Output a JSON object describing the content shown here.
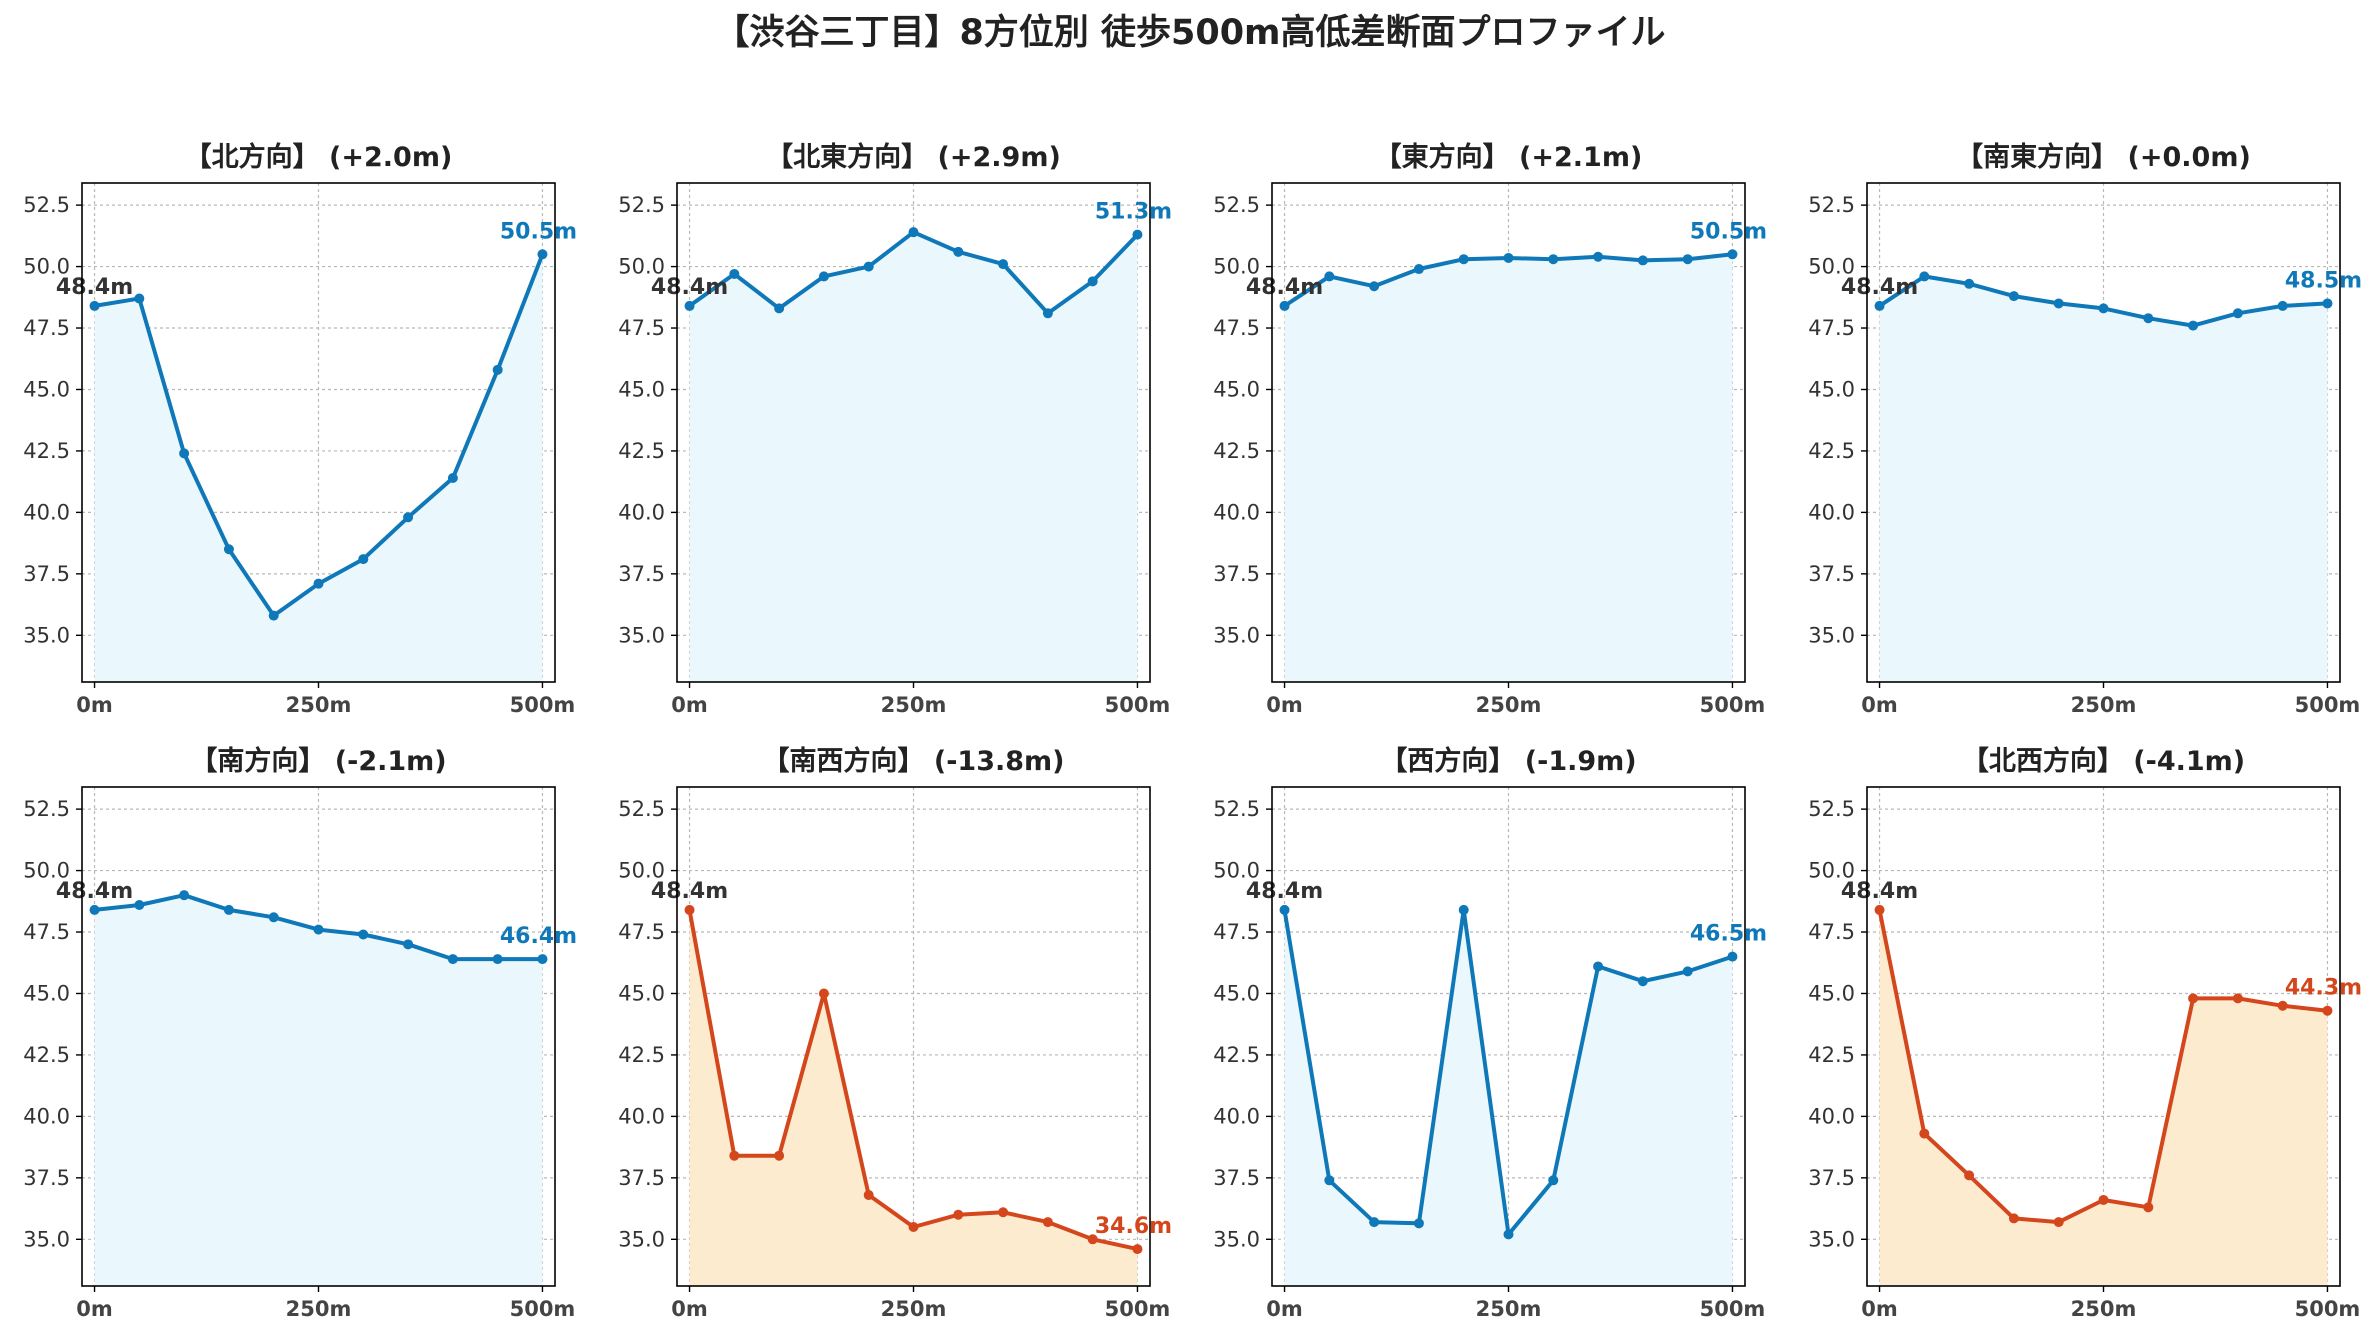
{
  "title": "【渋谷三丁目】8方位別 徒歩500m高低差断面プロファイル",
  "colors": {
    "up_line": "#0f78b8",
    "up_fill": "#eaf7fc",
    "down_line": "#d4471c",
    "down_fill": "#fdebcf"
  },
  "chart_data": [
    {
      "type": "area",
      "title": "【北方向】 (+2.0m)",
      "x": [
        0,
        50,
        100,
        150,
        200,
        250,
        300,
        350,
        400,
        450,
        500
      ],
      "values": [
        48.4,
        48.7,
        42.4,
        38.5,
        35.8,
        37.1,
        38.1,
        39.8,
        41.4,
        45.8,
        50.5
      ],
      "start_label": "48.4m",
      "end_label": "50.5m",
      "trend": "up",
      "xticks": [
        "0m",
        "250m",
        "500m"
      ],
      "yticks": [
        "35.0",
        "37.5",
        "40.0",
        "42.5",
        "45.0",
        "47.5",
        "50.0",
        "52.5"
      ],
      "ylim": [
        33.1,
        53.4
      ],
      "xlim": [
        -14,
        514
      ],
      "grid": true
    },
    {
      "type": "area",
      "title": "【北東方向】 (+2.9m)",
      "x": [
        0,
        50,
        100,
        150,
        200,
        250,
        300,
        350,
        400,
        450,
        500
      ],
      "values": [
        48.4,
        49.7,
        48.3,
        49.6,
        50.0,
        51.4,
        50.6,
        50.1,
        48.1,
        49.4,
        51.3
      ],
      "start_label": "48.4m",
      "end_label": "51.3m",
      "trend": "up",
      "xticks": [
        "0m",
        "250m",
        "500m"
      ],
      "yticks": [
        "35.0",
        "37.5",
        "40.0",
        "42.5",
        "45.0",
        "47.5",
        "50.0",
        "52.5"
      ],
      "ylim": [
        33.1,
        53.4
      ],
      "xlim": [
        -14,
        514
      ],
      "grid": true
    },
    {
      "type": "area",
      "title": "【東方向】 (+2.1m)",
      "x": [
        0,
        50,
        100,
        150,
        200,
        250,
        300,
        350,
        400,
        450,
        500
      ],
      "values": [
        48.4,
        49.6,
        49.2,
        49.9,
        50.3,
        50.35,
        50.3,
        50.4,
        50.25,
        50.3,
        50.5
      ],
      "start_label": "48.4m",
      "end_label": "50.5m",
      "trend": "up",
      "xticks": [
        "0m",
        "250m",
        "500m"
      ],
      "yticks": [
        "35.0",
        "37.5",
        "40.0",
        "42.5",
        "45.0",
        "47.5",
        "50.0",
        "52.5"
      ],
      "ylim": [
        33.1,
        53.4
      ],
      "xlim": [
        -14,
        514
      ],
      "grid": true
    },
    {
      "type": "area",
      "title": "【南東方向】 (+0.0m)",
      "x": [
        0,
        50,
        100,
        150,
        200,
        250,
        300,
        350,
        400,
        450,
        500
      ],
      "values": [
        48.4,
        49.6,
        49.3,
        48.8,
        48.5,
        48.3,
        47.9,
        47.6,
        48.1,
        48.4,
        48.5
      ],
      "start_label": "48.4m",
      "end_label": "48.5m",
      "trend": "up",
      "xticks": [
        "0m",
        "250m",
        "500m"
      ],
      "yticks": [
        "35.0",
        "37.5",
        "40.0",
        "42.5",
        "45.0",
        "47.5",
        "50.0",
        "52.5"
      ],
      "ylim": [
        33.1,
        53.4
      ],
      "xlim": [
        -14,
        514
      ],
      "grid": true
    },
    {
      "type": "area",
      "title": "【南方向】 (-2.1m)",
      "x": [
        0,
        50,
        100,
        150,
        200,
        250,
        300,
        350,
        400,
        450,
        500
      ],
      "values": [
        48.4,
        48.6,
        49.0,
        48.4,
        48.1,
        47.6,
        47.4,
        47.0,
        46.4,
        46.4,
        46.4
      ],
      "start_label": "48.4m",
      "end_label": "46.4m",
      "trend": "up",
      "xticks": [
        "0m",
        "250m",
        "500m"
      ],
      "yticks": [
        "35.0",
        "37.5",
        "40.0",
        "42.5",
        "45.0",
        "47.5",
        "50.0",
        "52.5"
      ],
      "ylim": [
        33.1,
        53.4
      ],
      "xlim": [
        -14,
        514
      ],
      "grid": true
    },
    {
      "type": "area",
      "title": "【南西方向】 (-13.8m)",
      "x": [
        0,
        50,
        100,
        150,
        200,
        250,
        300,
        350,
        400,
        450,
        500
      ],
      "values": [
        48.4,
        38.4,
        38.4,
        45.0,
        36.8,
        35.5,
        36.0,
        36.1,
        35.7,
        35.0,
        34.6
      ],
      "start_label": "48.4m",
      "end_label": "34.6m",
      "trend": "down",
      "xticks": [
        "0m",
        "250m",
        "500m"
      ],
      "yticks": [
        "35.0",
        "37.5",
        "40.0",
        "42.5",
        "45.0",
        "47.5",
        "50.0",
        "52.5"
      ],
      "ylim": [
        33.1,
        53.4
      ],
      "xlim": [
        -14,
        514
      ],
      "grid": true
    },
    {
      "type": "area",
      "title": "【西方向】 (-1.9m)",
      "x": [
        0,
        50,
        100,
        150,
        200,
        250,
        300,
        350,
        400,
        450,
        500
      ],
      "values": [
        48.4,
        37.4,
        35.7,
        35.65,
        48.4,
        35.2,
        37.4,
        46.1,
        45.5,
        45.9,
        46.5
      ],
      "start_label": "48.4m",
      "end_label": "46.5m",
      "trend": "up",
      "xticks": [
        "0m",
        "250m",
        "500m"
      ],
      "yticks": [
        "35.0",
        "37.5",
        "40.0",
        "42.5",
        "45.0",
        "47.5",
        "50.0",
        "52.5"
      ],
      "ylim": [
        33.1,
        53.4
      ],
      "xlim": [
        -14,
        514
      ],
      "grid": true
    },
    {
      "type": "area",
      "title": "【北西方向】 (-4.1m)",
      "x": [
        0,
        50,
        100,
        150,
        200,
        250,
        300,
        350,
        400,
        450,
        500
      ],
      "values": [
        48.4,
        39.3,
        37.6,
        35.85,
        35.7,
        36.6,
        36.3,
        44.8,
        44.8,
        44.5,
        44.3
      ],
      "start_label": "48.4m",
      "end_label": "44.3m",
      "trend": "down",
      "xticks": [
        "0m",
        "250m",
        "500m"
      ],
      "yticks": [
        "35.0",
        "37.5",
        "40.0",
        "42.5",
        "45.0",
        "47.5",
        "50.0",
        "52.5"
      ],
      "ylim": [
        33.1,
        53.4
      ],
      "xlim": [
        -14,
        514
      ],
      "grid": true
    }
  ]
}
